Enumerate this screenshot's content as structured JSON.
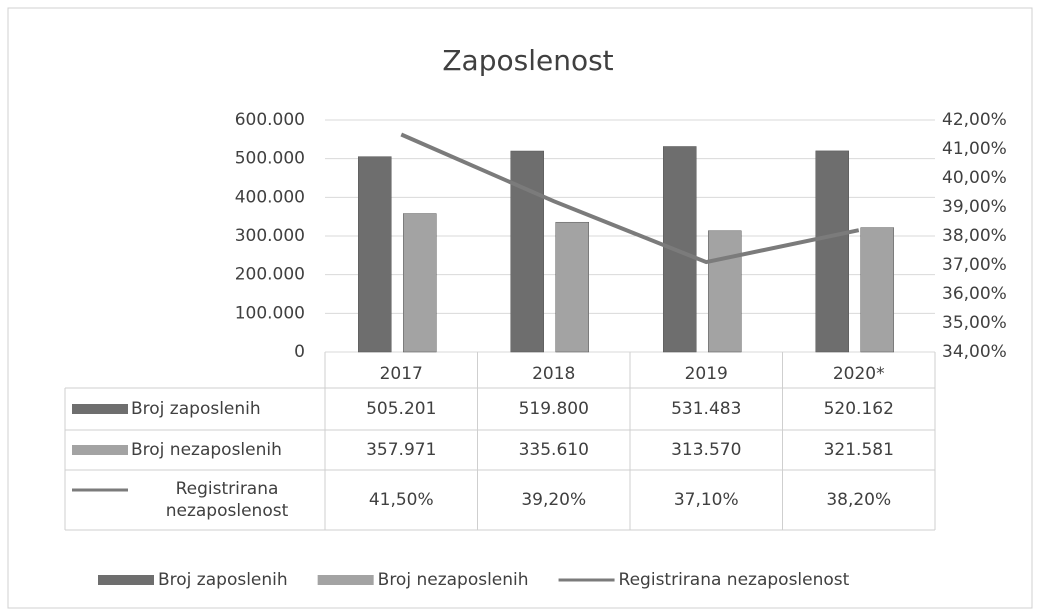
{
  "chart_data": {
    "type": "bar",
    "title": "Zaposlenost",
    "categories": [
      "2017",
      "2018",
      "2019",
      "2020*"
    ],
    "series": [
      {
        "name": "Broj zaposlenih",
        "color": "#6e6e6e",
        "values": [
          505201,
          519800,
          531483,
          520162
        ],
        "value_labels": [
          "505.201",
          "519.800",
          "531.483",
          "520.162"
        ]
      },
      {
        "name": "Broj nezaposlenih",
        "color": "#a3a3a3",
        "values": [
          357971,
          335610,
          313570,
          321581
        ],
        "value_labels": [
          "357.971",
          "335.610",
          "313.570",
          "321.581"
        ]
      },
      {
        "name": "Registrirana nezaposlenost",
        "type": "line",
        "axis": "y2",
        "color": "#7b7b7b",
        "values": [
          41.5,
          39.2,
          37.1,
          38.2
        ],
        "value_labels": [
          "41,50%",
          "39,20%",
          "37,10%",
          "38,20%"
        ]
      }
    ],
    "ylim": [
      0,
      600000
    ],
    "yticks": [
      0,
      {
        "value": 100000,
        "label": "100.000"
      },
      {
        "value": 200000,
        "label": "200.000"
      },
      {
        "value": 300000,
        "label": "300.000"
      },
      {
        "value": 400000,
        "label": "400.000"
      },
      {
        "value": 500000,
        "label": "500.000"
      },
      {
        "value": 600000,
        "label": "600.000"
      }
    ],
    "y2lim": [
      34,
      42
    ],
    "y2ticks": [
      {
        "value": 34,
        "label": "34,00%"
      },
      {
        "value": 35,
        "label": "35,00%"
      },
      {
        "value": 36,
        "label": "36,00%"
      },
      {
        "value": 37,
        "label": "37,00%"
      },
      {
        "value": 38,
        "label": "38,00%"
      },
      {
        "value": 39,
        "label": "39,00%"
      },
      {
        "value": 40,
        "label": "40,00%"
      },
      {
        "value": 41,
        "label": "41,00%"
      },
      {
        "value": 42,
        "label": "42,00%"
      }
    ],
    "grid": true,
    "legend": "bottom"
  }
}
